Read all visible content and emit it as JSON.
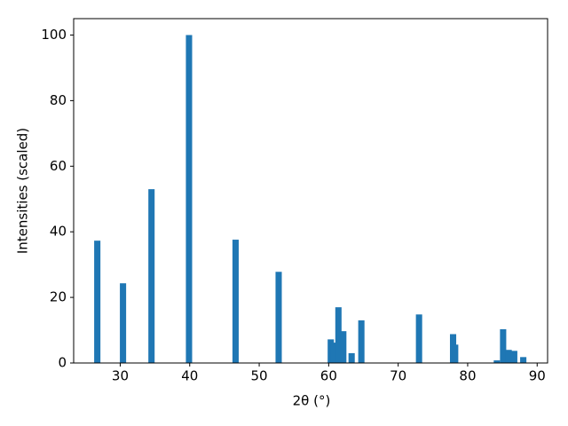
{
  "chart_data": {
    "type": "bar",
    "xlabel": "2θ (°)",
    "ylabel": "Intensities (scaled)",
    "x": [
      26.7,
      30.4,
      34.5,
      39.9,
      46.6,
      52.8,
      60.3,
      60.7,
      61.4,
      62.1,
      63.3,
      64.7,
      73.0,
      77.9,
      78.2,
      84.2,
      85.1,
      85.9,
      86.7,
      88.0
    ],
    "values": [
      37.3,
      24.3,
      53.0,
      100,
      37.6,
      27.8,
      7.2,
      6.2,
      17.0,
      9.7,
      3.0,
      13.0,
      14.8,
      8.8,
      5.6,
      0.8,
      10.3,
      4.0,
      3.7,
      1.8
    ],
    "color": "#1f77b4",
    "xlim": [
      23.3,
      91.5
    ],
    "xticks": [
      30,
      40,
      50,
      60,
      70,
      80,
      90
    ],
    "ylim": [
      0,
      105
    ],
    "yticks": [
      0,
      20,
      40,
      60,
      80,
      100
    ]
  }
}
